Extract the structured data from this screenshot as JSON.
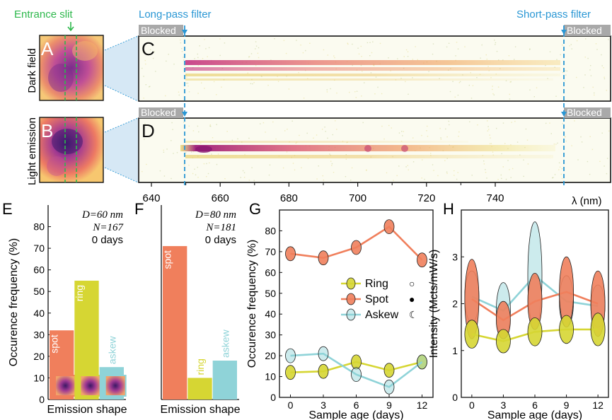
{
  "colors": {
    "ring": "#d6d633",
    "spot": "#f07f5c",
    "askew": "#8fd3d8",
    "entrance": "#2eb84c",
    "filter": "#2a97d4",
    "blocked_bg": "#a9a9a9",
    "spectrum_hot": "#b9217a",
    "spectrum_warm": "#ef8a3a",
    "spectrum_pale": "#e9e06a"
  },
  "top": {
    "entrance_label": "Entrance slit",
    "longpass_label": "Long-pass filter",
    "shortpass_label": "Short-pass filter",
    "blocked_label": "Blocked",
    "row1_label": "Dark field",
    "row2_label": "Light emission",
    "letters": {
      "a": "A",
      "b": "B",
      "c": "C",
      "d": "D"
    },
    "wavelength_ticks": [
      "640",
      "660",
      "680",
      "700",
      "720",
      "740"
    ],
    "wavelength_label": "λ (nm)"
  },
  "chart_data": [
    {
      "panel": "E",
      "type": "bar",
      "categories": [
        "spot",
        "ring",
        "askew"
      ],
      "values": [
        32,
        55,
        15
      ],
      "colors": [
        "#f07f5c",
        "#d6d633",
        "#8fd3d8"
      ],
      "xlabel": "Emission shape",
      "ylabel": "Occurence frequency (%)",
      "ylim": [
        0,
        90
      ],
      "yticks": [
        "0",
        "10",
        "20",
        "30",
        "40",
        "50",
        "60",
        "70",
        "80"
      ],
      "annotation": [
        "D=60 nm",
        "N=167",
        "0 days"
      ]
    },
    {
      "panel": "F",
      "type": "bar",
      "categories": [
        "spot",
        "ring",
        "askew"
      ],
      "values": [
        71,
        10,
        18
      ],
      "colors": [
        "#f07f5c",
        "#d6d633",
        "#8fd3d8"
      ],
      "xlabel": "Emission shape",
      "ylim": [
        0,
        90
      ],
      "annotation": [
        "D=80 nm",
        "N=181",
        "0 days"
      ]
    },
    {
      "panel": "G",
      "type": "line",
      "x": [
        0,
        3,
        6,
        9,
        12
      ],
      "xlim": [
        -1,
        13
      ],
      "ylim": [
        0,
        90
      ],
      "xlabel": "Sample age (days)",
      "ylabel": "Occurence frequency (%)",
      "xticks": [
        "0",
        "3",
        "6",
        "9",
        "12"
      ],
      "yticks": [
        "0",
        "10",
        "20",
        "30",
        "40",
        "50",
        "60",
        "70",
        "80"
      ],
      "legend_position": "center-right",
      "series": [
        {
          "name": "Ring",
          "values": [
            12,
            12.5,
            17,
            13,
            17
          ],
          "color": "#d6d633",
          "symbol": "○"
        },
        {
          "name": "Spot",
          "values": [
            69,
            67,
            72,
            82,
            66
          ],
          "color": "#f07f5c",
          "symbol": "●"
        },
        {
          "name": "Askew",
          "values": [
            20,
            21,
            11,
            5,
            17
          ],
          "color": "#8fd3d8",
          "symbol": "☾"
        }
      ]
    },
    {
      "panel": "H",
      "type": "line",
      "x": [
        0,
        3,
        6,
        9,
        12
      ],
      "xlim": [
        -1,
        13
      ],
      "ylim": [
        0,
        4
      ],
      "xlabel": "Sample age (days)",
      "ylabel": "Intensity (Mcts/mW/s)",
      "xticks": [
        "0",
        "3",
        "6",
        "9",
        "12"
      ],
      "yticks": [
        "0",
        "1",
        "2",
        "3"
      ],
      "series": [
        {
          "name": "Ring",
          "values": [
            1.35,
            1.2,
            1.4,
            1.45,
            1.45
          ],
          "spread": [
            0.3,
            0.25,
            0.3,
            0.3,
            0.35
          ],
          "color": "#d6d633"
        },
        {
          "name": "Spot",
          "values": [
            2.1,
            1.65,
            2.05,
            2.25,
            2.0
          ],
          "spread": [
            0.85,
            0.4,
            0.6,
            0.75,
            0.7
          ],
          "color": "#f07f5c"
        },
        {
          "name": "Askew",
          "values": [
            2.15,
            1.85,
            2.6,
            2.05,
            1.95
          ],
          "spread": [
            0.55,
            0.6,
            1.15,
            0.55,
            0.45
          ],
          "color": "#8fd3d8"
        }
      ]
    }
  ]
}
